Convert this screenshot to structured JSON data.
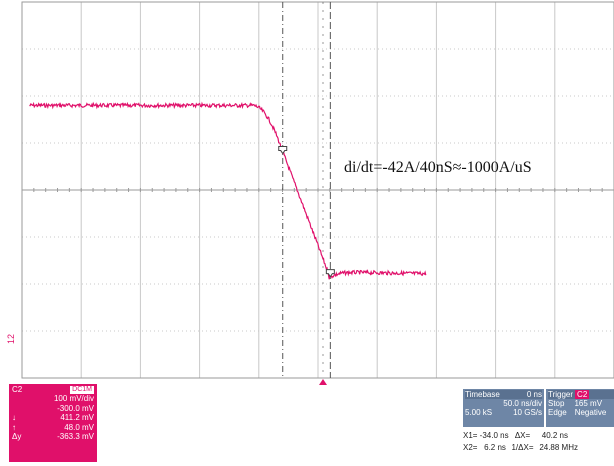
{
  "colors": {
    "trace": "#e0106a",
    "grid": "#c8c8c8",
    "axis": "#9a9a9a",
    "cursor": "#555555",
    "panel_accent": "#e0106a",
    "timebase_panel": "#6e86a6"
  },
  "trace": {
    "pre_edge_level_div": 2.2,
    "post_edge_level_div": 5.8,
    "x_start_ns": -248,
    "x_end_ns": 87,
    "edge_start_ns": -60,
    "edge_end_ns": 5,
    "noise_div": 0.04
  },
  "cursors": {
    "x1_ns": -34.0,
    "x2_ns": 6.2,
    "trigger_ns": 0
  },
  "grid": {
    "time_per_div_ns": 50,
    "divisions_x": 10,
    "divisions_y": 8
  },
  "annotation": {
    "text": "di/dt=-42A/40nS≈-1000A/uS"
  },
  "channel_label": "12",
  "channel_panel": {
    "name": "C2",
    "coupling": "DC1M",
    "volts_div": "100 mV/div",
    "offset": "-300.0 mV",
    "y1_label": "↓",
    "y1_value": "411.2 mV",
    "y2_label": "↑",
    "y2_value": "48.0 mV",
    "dy_label": "Δy",
    "dy_value": "-363.3 mV"
  },
  "timebase": {
    "title": "Timebase",
    "delay": "0 ns",
    "time_div": "50.0 ns/div",
    "samples": "5.00 kS",
    "rate": "10 GS/s"
  },
  "trigger": {
    "title": "Trigger",
    "source": "C2",
    "mode": "Stop",
    "level": "165 mV",
    "type": "Edge",
    "slope": "Negative"
  },
  "cursor_readout": {
    "x1": "X1= -34.0 ns",
    "dx": "ΔX=",
    "dx_value": "40.2 ns",
    "x2": "X2=   6.2 ns",
    "inv_dx": "1/ΔX=",
    "inv_dx_value": "24.88 MHz"
  }
}
